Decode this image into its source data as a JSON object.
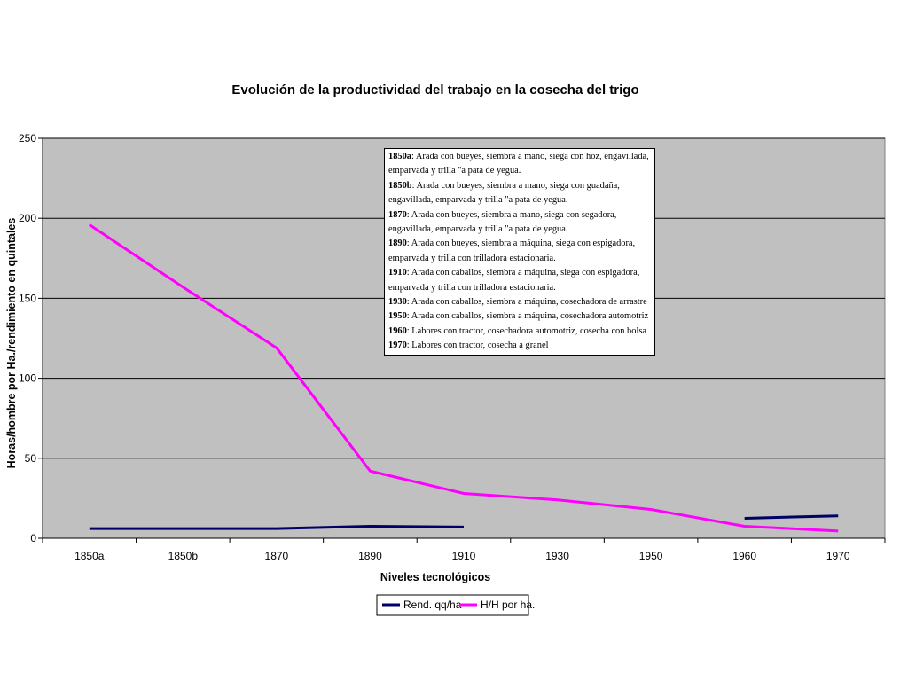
{
  "chart_data": {
    "type": "line",
    "title": "Evolución de la productividad del trabajo en la cosecha del trigo",
    "xlabel": "Niveles tecnológicos",
    "ylabel": "Horas/hombre por Ha./rendimiento en quintales",
    "categories": [
      "1850a",
      "1850b",
      "1870",
      "1890",
      "1910",
      "1930",
      "1950",
      "1960",
      "1970"
    ],
    "ylim": [
      0,
      250
    ],
    "yticks": [
      "0",
      "50",
      "100",
      "150",
      "200",
      "250"
    ],
    "grid": true,
    "legend_position": "bottom",
    "series": [
      {
        "name": "Rend. qq/ha",
        "color": "#000066",
        "values": [
          6,
          6,
          6,
          7.5,
          7,
          null,
          null,
          12.5,
          14
        ]
      },
      {
        "name": "H/H por ha.",
        "color": "#ff00ff",
        "values": [
          196,
          157,
          119,
          42,
          28,
          24,
          18,
          7.5,
          4.5
        ]
      }
    ],
    "annotation": [
      {
        "key": "1850a",
        "text": ": Arada con bueyes, siembra a mano, siega con hoz, engavillada, emparvada y trilla \"a pata de yegua."
      },
      {
        "key": "1850b",
        "text": ": Arada con bueyes, siembra a mano, siega con guadaña, engavillada, emparvada y trilla \"a pata de yegua."
      },
      {
        "key": "1870",
        "text": ": Arada con bueyes, siembra a mano, siega con segadora, engavillada, emparvada y trilla \"a pata de yegua."
      },
      {
        "key": "1890",
        "text": ": Arada con bueyes, siembra a máquina, siega con espigadora, emparvada y trilla con trilladora estacionaria."
      },
      {
        "key": "1910",
        "text": ": Arada con caballos, siembra a máquina, siega con espigadora, emparvada y trilla con trilladora estacionaria."
      },
      {
        "key": "1930",
        "text": ": Arada con caballos, siembra a máquina, cosechadora de arrastre"
      },
      {
        "key": "1950",
        "text": ": Arada con caballos, siembra a máquina, cosechadora automotriz"
      },
      {
        "key": "1960",
        "text": ": Labores con tractor, cosechadora automotriz, cosecha con bolsa"
      },
      {
        "key": "1970",
        "text": ": Labores con tractor, cosecha a granel"
      }
    ]
  }
}
